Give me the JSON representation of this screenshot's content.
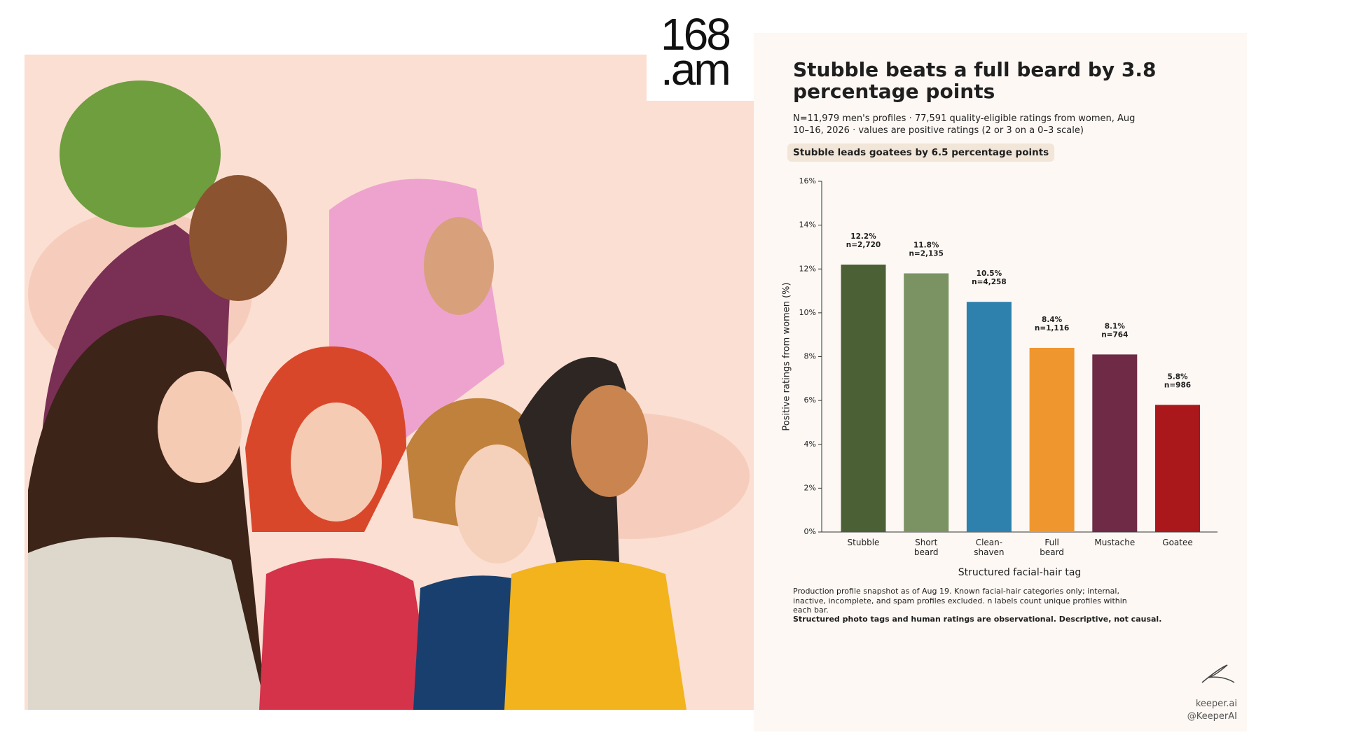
{
  "logo": {
    "line1": "168",
    "line2": ".am"
  },
  "chart_data": {
    "type": "bar",
    "title": "Stubble beats a full beard by 3.8 percentage points",
    "subtitle": "N=11,979 men's profiles · 77,591 quality-eligible ratings from women, Aug 10–16, 2026 · values are positive ratings (2 or 3 on a 0–3 scale)",
    "annotation": "Stubble leads goatees by 6.5 percentage points",
    "categories": [
      "Stubble",
      "Short beard",
      "Clean-shaven",
      "Full beard",
      "Mustache",
      "Goatee"
    ],
    "values": [
      12.2,
      11.8,
      10.5,
      8.4,
      8.1,
      5.8
    ],
    "value_labels": [
      "12.2%",
      "11.8%",
      "10.5%",
      "8.4%",
      "8.1%",
      "5.8%"
    ],
    "n_labels": [
      "n=2,720",
      "n=2,135",
      "n=4,258",
      "n=1,116",
      "n=764",
      "n=986"
    ],
    "colors": [
      "#4b6034",
      "#7b9363",
      "#2e80ad",
      "#f0962f",
      "#6f2a46",
      "#aa181b"
    ],
    "ylabel": "Positive ratings from women (%)",
    "xlabel": "Structured facial-hair tag",
    "ylim": [
      0,
      16
    ],
    "yticks": [
      {
        "value": 0,
        "label": "0%"
      },
      {
        "value": 2,
        "label": "2%"
      },
      {
        "value": 4,
        "label": "4%"
      },
      {
        "value": 6,
        "label": "6%"
      },
      {
        "value": 8,
        "label": "8%"
      },
      {
        "value": 10,
        "label": "10%"
      },
      {
        "value": 12,
        "label": "12%"
      },
      {
        "value": 14,
        "label": "14%"
      },
      {
        "value": 16,
        "label": "16%"
      }
    ],
    "grid": false,
    "notes": [
      "Production profile snapshot as of Aug 19. Known facial-hair categories only; internal, inactive, incomplete, and spam profiles excluded. n labels count unique profiles within each bar.",
      "Structured photo tags and human ratings are observational. Descriptive, not causal."
    ]
  },
  "footer": {
    "brand": "keeper.ai",
    "handle": "@KeeperAI"
  }
}
